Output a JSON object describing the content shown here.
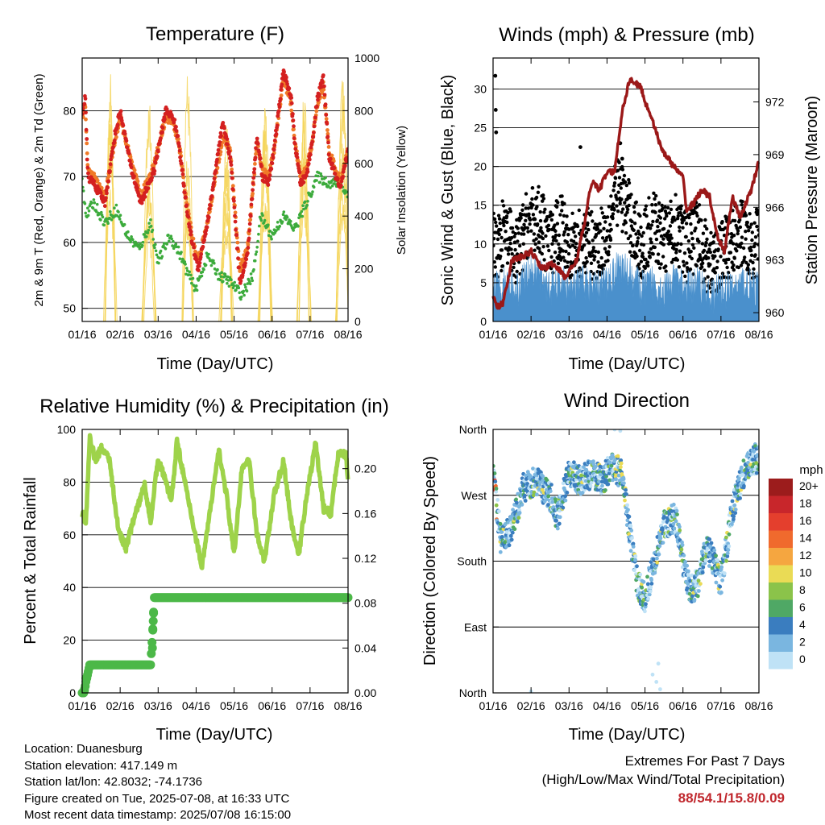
{
  "colors": {
    "t2m": "#d42020",
    "t9m": "#f07a28",
    "td": "#3cab3c",
    "solar": "#f5d55a",
    "wind": "#4a90cc",
    "gust": "#000000",
    "pressure": "#9b1818",
    "rh": "#9ed34a",
    "precip": "#4cb848",
    "extremes": "#c0272d"
  },
  "chart_data": [
    {
      "type": "line",
      "title": "Temperature (F)",
      "xlabel": "Time (Day/UTC)",
      "ylabel": "2m & 9m T (Red, Orange) & 2m Td (Green)",
      "y2label": "Solar Insolation (Yellow)",
      "x_ticks": [
        "01/16",
        "02/16",
        "03/16",
        "04/16",
        "05/16",
        "06/16",
        "07/16",
        "08/16"
      ],
      "xlim": [
        0,
        7
      ],
      "ylim": [
        48,
        88
      ],
      "y_ticks": [
        50,
        60,
        70,
        80
      ],
      "y2lim": [
        0,
        1000
      ],
      "y2_ticks": [
        0,
        200,
        400,
        600,
        800,
        1000
      ],
      "grid": true,
      "series": [
        {
          "key": "t2m",
          "x": [
            0,
            0.08,
            0.15,
            0.3,
            0.6,
            0.85,
            1.0,
            1.3,
            1.55,
            1.9,
            2.2,
            2.4,
            2.55,
            2.75,
            2.9,
            3.05,
            3.3,
            3.7,
            3.9,
            4.05,
            4.15,
            4.35,
            4.6,
            4.75,
            4.9,
            5.05,
            5.3,
            5.5,
            5.6,
            5.75,
            5.9,
            6.05,
            6.2,
            6.35,
            6.5,
            6.8,
            7.0
          ],
          "values": [
            80,
            82,
            70,
            69,
            66,
            76,
            80,
            71,
            66,
            71,
            80,
            79,
            75,
            65,
            60,
            56,
            63,
            78,
            73,
            62,
            54,
            58,
            76,
            70,
            69,
            74,
            86,
            82,
            75,
            69,
            70,
            75,
            82,
            85,
            73,
            68,
            74
          ]
        },
        {
          "key": "t9m",
          "x": [
            0,
            0.08,
            0.15,
            0.3,
            0.6,
            0.85,
            1.0,
            1.3,
            1.55,
            1.9,
            2.2,
            2.4,
            2.55,
            2.75,
            2.9,
            3.05,
            3.3,
            3.7,
            3.9,
            4.05,
            4.15,
            4.35,
            4.6,
            4.75,
            4.9,
            5.05,
            5.3,
            5.5,
            5.6,
            5.75,
            5.9,
            6.05,
            6.2,
            6.35,
            6.5,
            6.8,
            7.0
          ],
          "values": [
            79,
            81,
            71,
            70,
            67,
            75,
            79,
            72,
            67,
            72,
            79,
            78,
            75,
            66,
            61,
            57,
            63,
            76,
            74,
            63,
            56,
            59,
            75,
            71,
            70,
            74,
            85,
            81,
            75,
            70,
            71,
            75,
            81,
            84,
            74,
            69,
            74
          ]
        },
        {
          "key": "td",
          "x": [
            0,
            0.1,
            0.3,
            0.6,
            0.9,
            1.2,
            1.5,
            1.8,
            2.0,
            2.3,
            2.6,
            2.8,
            3.0,
            3.3,
            3.6,
            3.9,
            4.2,
            4.5,
            4.7,
            5.0,
            5.3,
            5.6,
            5.9,
            6.2,
            6.5,
            6.8,
            7.0
          ],
          "values": [
            70,
            64,
            66,
            63,
            65,
            61,
            59,
            63,
            57,
            61,
            58,
            55,
            53,
            58,
            55,
            54,
            52,
            55,
            64,
            61,
            64,
            62,
            66,
            70,
            69,
            69,
            67
          ]
        },
        {
          "key": "solar",
          "note": "daily insolation peaks",
          "values": [
            900,
            960,
            930,
            950,
            960,
            940,
            980,
            950
          ]
        }
      ]
    },
    {
      "type": "scatter",
      "title": "Winds (mph) & Pressure (mb)",
      "xlabel": "Time (Day/UTC)",
      "ylabel": "Sonic Wind & Gust (Blue, Black)",
      "y2label": "Station Pressure (Maroon)",
      "x_ticks": [
        "01/16",
        "02/16",
        "03/16",
        "04/16",
        "05/16",
        "06/16",
        "07/16",
        "08/16"
      ],
      "xlim": [
        0,
        7
      ],
      "ylim": [
        0,
        34
      ],
      "y_ticks": [
        0,
        5,
        10,
        15,
        20,
        25,
        30
      ],
      "y2lim": [
        959.5,
        974.5
      ],
      "y2_ticks": [
        960,
        963,
        966,
        969,
        972
      ],
      "grid": true,
      "series": [
        {
          "key": "pressure",
          "x": [
            0,
            0.1,
            0.25,
            0.5,
            0.8,
            1.0,
            1.3,
            1.6,
            1.9,
            2.2,
            2.4,
            2.6,
            2.8,
            3.0,
            3.2,
            3.4,
            3.6,
            3.9,
            4.0,
            4.2,
            4.4,
            4.6,
            4.8,
            5.0,
            5.1,
            5.3,
            5.5,
            5.7,
            5.9,
            6.1,
            6.3,
            6.5,
            6.8,
            7.0
          ],
          "values": [
            961,
            960.3,
            960.5,
            963,
            963.2,
            963.5,
            962.5,
            962.8,
            962,
            963,
            965,
            967.5,
            967,
            968,
            968,
            971.5,
            973.3,
            972.8,
            972,
            971,
            969.5,
            968.8,
            968.2,
            967.7,
            965.8,
            966.3,
            967,
            966.6,
            964.3,
            963.5,
            966.6,
            965.4,
            967,
            968.6
          ]
        },
        {
          "key": "gust_mean",
          "x": [
            0,
            0.3,
            0.6,
            0.9,
            1.2,
            1.5,
            1.8,
            2.1,
            2.4,
            2.7,
            3.0,
            3.3,
            3.6,
            3.9,
            4.2,
            4.5,
            4.8,
            5.1,
            5.4,
            5.7,
            6.0,
            6.3,
            6.6,
            6.9,
            7.0
          ],
          "values": [
            9,
            11,
            8,
            12,
            13,
            9,
            12,
            9,
            10,
            9,
            11,
            17,
            13,
            9,
            12,
            10,
            12,
            9,
            11,
            7,
            8,
            10,
            11,
            9,
            11
          ]
        },
        {
          "key": "wind_mean",
          "x": [
            0,
            0.3,
            0.6,
            0.9,
            1.2,
            1.5,
            1.8,
            2.1,
            2.4,
            2.7,
            3.0,
            3.3,
            3.6,
            3.9,
            4.2,
            4.5,
            4.8,
            5.1,
            5.4,
            5.7,
            6.0,
            6.3,
            6.6,
            6.9,
            7.0
          ],
          "values": [
            4,
            5,
            4,
            6,
            6,
            4,
            5,
            4,
            5,
            4,
            5,
            7,
            6,
            4,
            5,
            4,
            5,
            4,
            5,
            3,
            4,
            4,
            5,
            4,
            5
          ]
        }
      ]
    },
    {
      "type": "line",
      "title": "Relative Humidity (%) & Precipitation (in)",
      "xlabel": "Time (Day/UTC)",
      "ylabel": "Percent & Total Rainfall",
      "x_ticks": [
        "01/16",
        "02/16",
        "03/16",
        "04/16",
        "05/16",
        "06/16",
        "07/16",
        "08/16"
      ],
      "xlim": [
        0,
        7
      ],
      "ylim": [
        0,
        100
      ],
      "y_ticks": [
        0,
        20,
        40,
        60,
        80,
        100
      ],
      "y2lim": [
        0,
        0.235
      ],
      "y2_ticks": [
        "0.00",
        "0.04",
        "0.08",
        "0.12",
        "0.16",
        "0.20"
      ],
      "grid": true,
      "series": [
        {
          "key": "rh",
          "x": [
            0,
            0.1,
            0.2,
            0.35,
            0.5,
            0.7,
            0.95,
            1.15,
            1.4,
            1.65,
            1.8,
            2.0,
            2.2,
            2.35,
            2.5,
            2.7,
            2.95,
            3.15,
            3.4,
            3.6,
            3.8,
            4.0,
            4.2,
            4.4,
            4.6,
            4.8,
            5.05,
            5.3,
            5.5,
            5.7,
            5.9,
            6.15,
            6.35,
            6.55,
            6.75,
            6.95,
            7.0
          ],
          "values": [
            68,
            65,
            97,
            88,
            93,
            90,
            62,
            55,
            68,
            79,
            65,
            89,
            80,
            73,
            96,
            80,
            62,
            48,
            72,
            92,
            75,
            52,
            85,
            88,
            60,
            50,
            75,
            88,
            65,
            52,
            74,
            95,
            70,
            68,
            92,
            90,
            79
          ]
        },
        {
          "key": "precip",
          "x": [
            0,
            0.05,
            0.1,
            0.2,
            1.8,
            1.85,
            1.9,
            7.0
          ],
          "values": [
            0,
            0,
            0.01,
            0.025,
            0.025,
            0.05,
            0.085,
            0.085
          ]
        }
      ]
    },
    {
      "type": "scatter",
      "title": "Wind Direction",
      "xlabel": "Time (Day/UTC)",
      "ylabel": "Direction (Colored By Speed)",
      "x_ticks": [
        "01/16",
        "02/16",
        "03/16",
        "04/16",
        "05/16",
        "06/16",
        "07/16",
        "08/16"
      ],
      "xlim": [
        0,
        7
      ],
      "ylim": [
        0,
        360
      ],
      "y_tick_labels": [
        "North",
        "East",
        "South",
        "West",
        "North"
      ],
      "y_tick_values": [
        0,
        90,
        180,
        270,
        360
      ],
      "grid": true,
      "legend_title": "mph",
      "legend_labels": [
        "20+",
        "18",
        "16",
        "14",
        "12",
        "10",
        "8",
        "6",
        "4",
        "2",
        "0"
      ],
      "legend_colors": [
        "#9c1c1c",
        "#c8262b",
        "#e43f2d",
        "#f06a2d",
        "#f5a640",
        "#eadb55",
        "#8bc34a",
        "#4fa865",
        "#3a7dbf",
        "#7ab6e0",
        "#bfe2f6"
      ],
      "series": [
        {
          "key": "direction",
          "x": [
            0,
            0.2,
            0.45,
            0.8,
            1.1,
            1.5,
            1.7,
            2.0,
            2.3,
            2.6,
            2.9,
            3.1,
            3.4,
            3.6,
            3.8,
            4.0,
            4.2,
            4.5,
            4.8,
            5.0,
            5.2,
            5.4,
            5.6,
            5.8,
            6.0,
            6.3,
            6.6,
            6.9,
            7.0
          ],
          "values": [
            300,
            210,
            220,
            280,
            290,
            270,
            240,
            300,
            290,
            300,
            290,
            310,
            300,
            220,
            150,
            130,
            170,
            230,
            240,
            180,
            140,
            150,
            200,
            180,
            150,
            250,
            300,
            320,
            320
          ]
        }
      ]
    }
  ],
  "info": {
    "location": "Location: Duanesburg",
    "elevation": "Station elevation: 417.149 m",
    "latlon": "Station lat/lon: 42.8032; -74.1736",
    "created": "Figure created on Tue, 2025-07-08, at 16:33 UTC",
    "latest": "Most recent data timestamp: 2025/07/08 16:15:00"
  },
  "extremes": {
    "title": "Extremes For Past 7 Days",
    "subtitle": "(High/Low/Max Wind/Total Precipitation)",
    "values": "88/54.1/15.8/0.09"
  }
}
